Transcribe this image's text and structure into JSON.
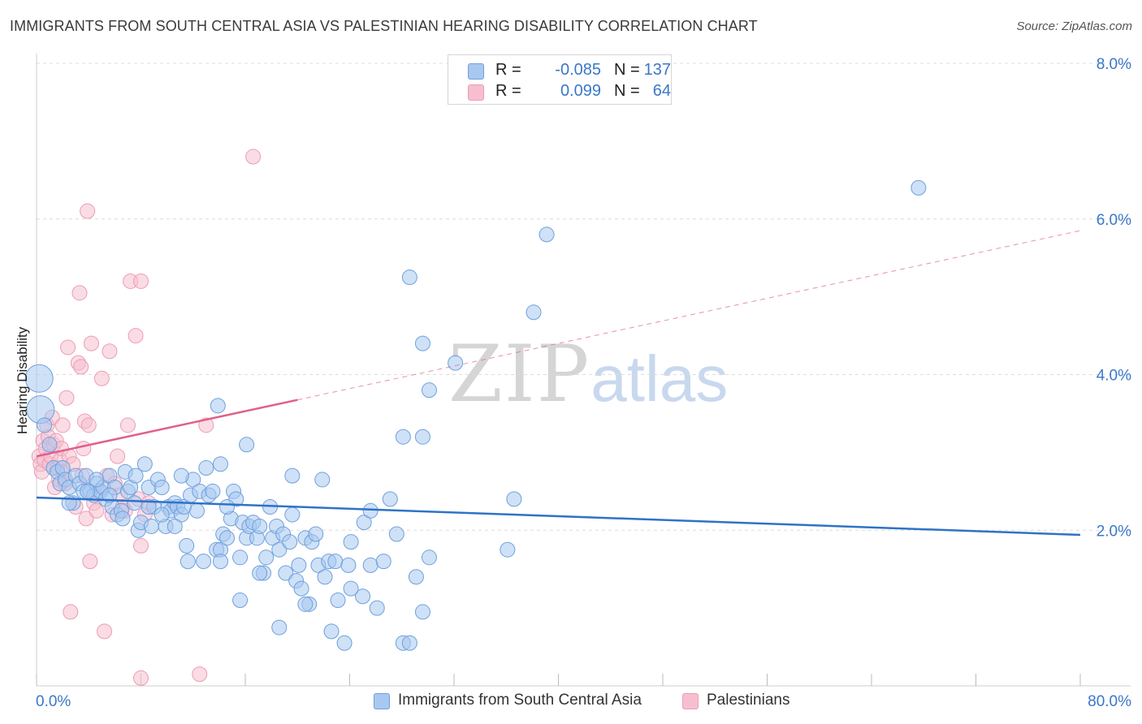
{
  "header": {
    "title": "IMMIGRANTS FROM SOUTH CENTRAL ASIA VS PALESTINIAN HEARING DISABILITY CORRELATION CHART",
    "source": "Source: ZipAtlas.com"
  },
  "watermark": {
    "zip": "ZIP",
    "atlas": "atlas"
  },
  "legend_top": [
    {
      "r_label": "R =",
      "r_value": "-0.085",
      "n_label": "N =",
      "n_value": "137"
    },
    {
      "r_label": "R =",
      "r_value": "0.099",
      "n_label": "N =",
      "n_value": "64"
    }
  ],
  "legend_bottom": [
    {
      "label": "Immigrants from South Central Asia"
    },
    {
      "label": "Palestinians"
    }
  ],
  "colors": {
    "blue_fill": "#a8c8f0",
    "blue_stroke": "#6ea0dc",
    "blue_line": "#2f72c8",
    "pink_fill": "#f6bfcf",
    "pink_stroke": "#ec9cb4",
    "pink_line": "#e0608a",
    "tick_text": "#3a78c8",
    "grid": "#dcdcdc"
  },
  "chart_data": {
    "type": "scatter",
    "title": "IMMIGRANTS FROM SOUTH CENTRAL ASIA VS PALESTINIAN HEARING DISABILITY CORRELATION CHART",
    "xlabel": "",
    "ylabel": "Hearing Disability",
    "xlim": [
      0,
      80
    ],
    "ylim": [
      0,
      8.0
    ],
    "x_tick_labels": [
      "0.0%",
      "80.0%"
    ],
    "y_ticks": [
      2.0,
      4.0,
      6.0,
      8.0
    ],
    "y_tick_labels": [
      "2.0%",
      "4.0%",
      "6.0%",
      "8.0%"
    ],
    "grid": true,
    "series": [
      {
        "name": "Immigrants from South Central Asia",
        "color": "blue",
        "trend": {
          "x": [
            0,
            80
          ],
          "y": [
            2.42,
            1.94
          ],
          "style": "solid"
        },
        "points": [
          [
            0.2,
            3.95,
            "L"
          ],
          [
            0.3,
            3.55,
            "L"
          ],
          [
            0.6,
            3.35
          ],
          [
            1.0,
            3.1
          ],
          [
            1.3,
            2.8
          ],
          [
            1.6,
            2.75
          ],
          [
            1.8,
            2.6
          ],
          [
            2.0,
            2.8
          ],
          [
            2.2,
            2.65
          ],
          [
            2.5,
            2.55
          ],
          [
            2.8,
            2.35
          ],
          [
            3.0,
            2.7
          ],
          [
            3.3,
            2.6
          ],
          [
            3.6,
            2.5
          ],
          [
            3.8,
            2.7
          ],
          [
            4.1,
            2.5
          ],
          [
            4.4,
            2.45
          ],
          [
            4.6,
            2.6
          ],
          [
            4.9,
            2.5
          ],
          [
            5.1,
            2.55
          ],
          [
            5.3,
            2.4
          ],
          [
            5.6,
            2.7
          ],
          [
            5.8,
            2.3
          ],
          [
            6.0,
            2.55
          ],
          [
            6.2,
            2.2
          ],
          [
            6.5,
            2.25
          ],
          [
            6.8,
            2.75
          ],
          [
            7.0,
            2.5
          ],
          [
            7.2,
            2.55
          ],
          [
            7.5,
            2.35
          ],
          [
            7.8,
            2.0
          ],
          [
            8.0,
            2.1
          ],
          [
            8.3,
            2.85
          ],
          [
            8.6,
            2.55
          ],
          [
            8.8,
            2.05
          ],
          [
            9.0,
            2.3
          ],
          [
            9.3,
            2.65
          ],
          [
            9.6,
            2.55
          ],
          [
            9.9,
            2.05
          ],
          [
            10.1,
            2.3
          ],
          [
            10.3,
            2.25
          ],
          [
            10.6,
            2.35
          ],
          [
            10.8,
            2.3
          ],
          [
            11.1,
            2.2
          ],
          [
            11.3,
            2.3
          ],
          [
            11.5,
            1.8
          ],
          [
            11.8,
            2.45
          ],
          [
            12.0,
            2.65
          ],
          [
            12.3,
            2.25
          ],
          [
            12.5,
            2.5
          ],
          [
            12.8,
            1.6
          ],
          [
            13.0,
            2.8
          ],
          [
            13.2,
            2.45
          ],
          [
            13.5,
            2.5
          ],
          [
            13.8,
            1.75
          ],
          [
            14.1,
            1.75
          ],
          [
            14.3,
            1.95
          ],
          [
            14.6,
            1.9
          ],
          [
            14.9,
            2.15
          ],
          [
            15.1,
            2.5
          ],
          [
            15.3,
            2.4
          ],
          [
            15.6,
            1.65
          ],
          [
            15.8,
            2.1
          ],
          [
            16.1,
            1.9
          ],
          [
            16.3,
            2.05
          ],
          [
            16.6,
            2.1
          ],
          [
            16.9,
            1.9
          ],
          [
            17.1,
            2.05
          ],
          [
            17.4,
            1.45
          ],
          [
            17.6,
            1.65
          ],
          [
            17.9,
            2.3
          ],
          [
            18.1,
            1.9
          ],
          [
            18.4,
            2.05
          ],
          [
            18.6,
            1.75
          ],
          [
            18.9,
            1.95
          ],
          [
            19.1,
            1.45
          ],
          [
            19.4,
            1.85
          ],
          [
            19.6,
            2.2
          ],
          [
            19.9,
            1.35
          ],
          [
            20.1,
            1.55
          ],
          [
            20.3,
            1.25
          ],
          [
            20.6,
            1.9
          ],
          [
            20.9,
            1.05
          ],
          [
            21.1,
            1.85
          ],
          [
            21.4,
            1.95
          ],
          [
            21.6,
            1.55
          ],
          [
            21.9,
            2.65
          ],
          [
            22.1,
            1.4
          ],
          [
            22.4,
            1.6
          ],
          [
            22.6,
            0.7
          ],
          [
            22.9,
            1.6
          ],
          [
            23.1,
            1.1
          ],
          [
            23.6,
            0.55
          ],
          [
            23.9,
            1.55
          ],
          [
            24.1,
            1.85
          ],
          [
            25.0,
            1.15
          ],
          [
            25.6,
            1.55
          ],
          [
            26.1,
            1.0
          ],
          [
            26.6,
            1.6
          ],
          [
            27.1,
            2.4
          ],
          [
            27.6,
            1.95
          ],
          [
            28.1,
            0.55
          ],
          [
            28.6,
            0.55
          ],
          [
            29.1,
            1.4
          ],
          [
            29.6,
            0.95
          ],
          [
            30.1,
            1.65
          ],
          [
            2.5,
            2.35
          ],
          [
            3.9,
            2.5
          ],
          [
            4.6,
            2.65
          ],
          [
            5.6,
            2.45
          ],
          [
            6.6,
            2.15
          ],
          [
            7.6,
            2.7
          ],
          [
            8.6,
            2.3
          ],
          [
            9.6,
            2.2
          ],
          [
            10.6,
            2.05
          ],
          [
            11.1,
            2.7
          ],
          [
            11.6,
            1.6
          ],
          [
            14.1,
            1.6
          ],
          [
            15.6,
            1.1
          ],
          [
            17.1,
            1.45
          ],
          [
            18.6,
            0.75
          ],
          [
            19.6,
            2.7
          ],
          [
            16.1,
            3.1
          ],
          [
            14.1,
            2.85
          ],
          [
            13.9,
            3.6
          ],
          [
            14.6,
            2.3
          ],
          [
            20.6,
            1.05
          ],
          [
            24.1,
            1.25
          ],
          [
            25.1,
            2.1
          ],
          [
            25.6,
            2.25
          ],
          [
            28.1,
            3.2
          ],
          [
            28.6,
            5.25
          ],
          [
            29.6,
            3.2
          ],
          [
            29.6,
            4.4
          ],
          [
            30.1,
            3.8
          ],
          [
            32.1,
            4.15
          ],
          [
            36.1,
            1.75
          ],
          [
            36.6,
            2.4
          ],
          [
            38.1,
            4.8
          ],
          [
            39.1,
            5.8
          ],
          [
            67.6,
            6.4
          ]
        ]
      },
      {
        "name": "Palestinians",
        "color": "pink",
        "trend": {
          "x": [
            0,
            80
          ],
          "y": [
            2.95,
            5.85
          ],
          "solid_until_x": 20
        },
        "points": [
          [
            0.2,
            2.95
          ],
          [
            0.3,
            2.85
          ],
          [
            0.4,
            2.75
          ],
          [
            0.5,
            3.15
          ],
          [
            0.6,
            2.9
          ],
          [
            0.7,
            3.05
          ],
          [
            0.8,
            3.35
          ],
          [
            0.9,
            3.2
          ],
          [
            1.0,
            2.85
          ],
          [
            1.1,
            2.95
          ],
          [
            1.2,
            3.45
          ],
          [
            1.3,
            3.1
          ],
          [
            1.4,
            2.55
          ],
          [
            1.5,
            3.15
          ],
          [
            1.6,
            2.8
          ],
          [
            1.7,
            2.65
          ],
          [
            1.8,
            2.9
          ],
          [
            1.9,
            3.05
          ],
          [
            2.0,
            3.35
          ],
          [
            2.1,
            2.75
          ],
          [
            2.2,
            2.6
          ],
          [
            2.3,
            3.7
          ],
          [
            2.4,
            4.35
          ],
          [
            2.5,
            2.95
          ],
          [
            2.6,
            0.95
          ],
          [
            2.8,
            2.85
          ],
          [
            3.0,
            2.3
          ],
          [
            3.2,
            4.15
          ],
          [
            3.3,
            5.05
          ],
          [
            3.4,
            4.1
          ],
          [
            3.5,
            2.7
          ],
          [
            3.6,
            3.05
          ],
          [
            3.7,
            3.4
          ],
          [
            3.8,
            2.15
          ],
          [
            3.9,
            6.1
          ],
          [
            4.0,
            3.35
          ],
          [
            4.1,
            1.6
          ],
          [
            4.2,
            4.4
          ],
          [
            4.4,
            2.35
          ],
          [
            4.6,
            2.25
          ],
          [
            4.8,
            2.5
          ],
          [
            5.0,
            3.95
          ],
          [
            5.2,
            0.7
          ],
          [
            5.4,
            2.7
          ],
          [
            5.6,
            4.3
          ],
          [
            5.8,
            2.2
          ],
          [
            6.0,
            2.6
          ],
          [
            6.2,
            2.95
          ],
          [
            6.4,
            2.45
          ],
          [
            6.6,
            2.3
          ],
          [
            6.8,
            2.25
          ],
          [
            7.0,
            3.35
          ],
          [
            7.2,
            5.2
          ],
          [
            7.6,
            4.5
          ],
          [
            7.8,
            2.4
          ],
          [
            8.0,
            5.2
          ],
          [
            8.0,
            1.8
          ],
          [
            8.3,
            2.2
          ],
          [
            8.6,
            2.35
          ],
          [
            8.0,
            0.1
          ],
          [
            12.5,
            0.15
          ],
          [
            13.0,
            3.35
          ],
          [
            16.6,
            6.8
          ],
          [
            2.2,
            2.6
          ]
        ]
      }
    ]
  }
}
